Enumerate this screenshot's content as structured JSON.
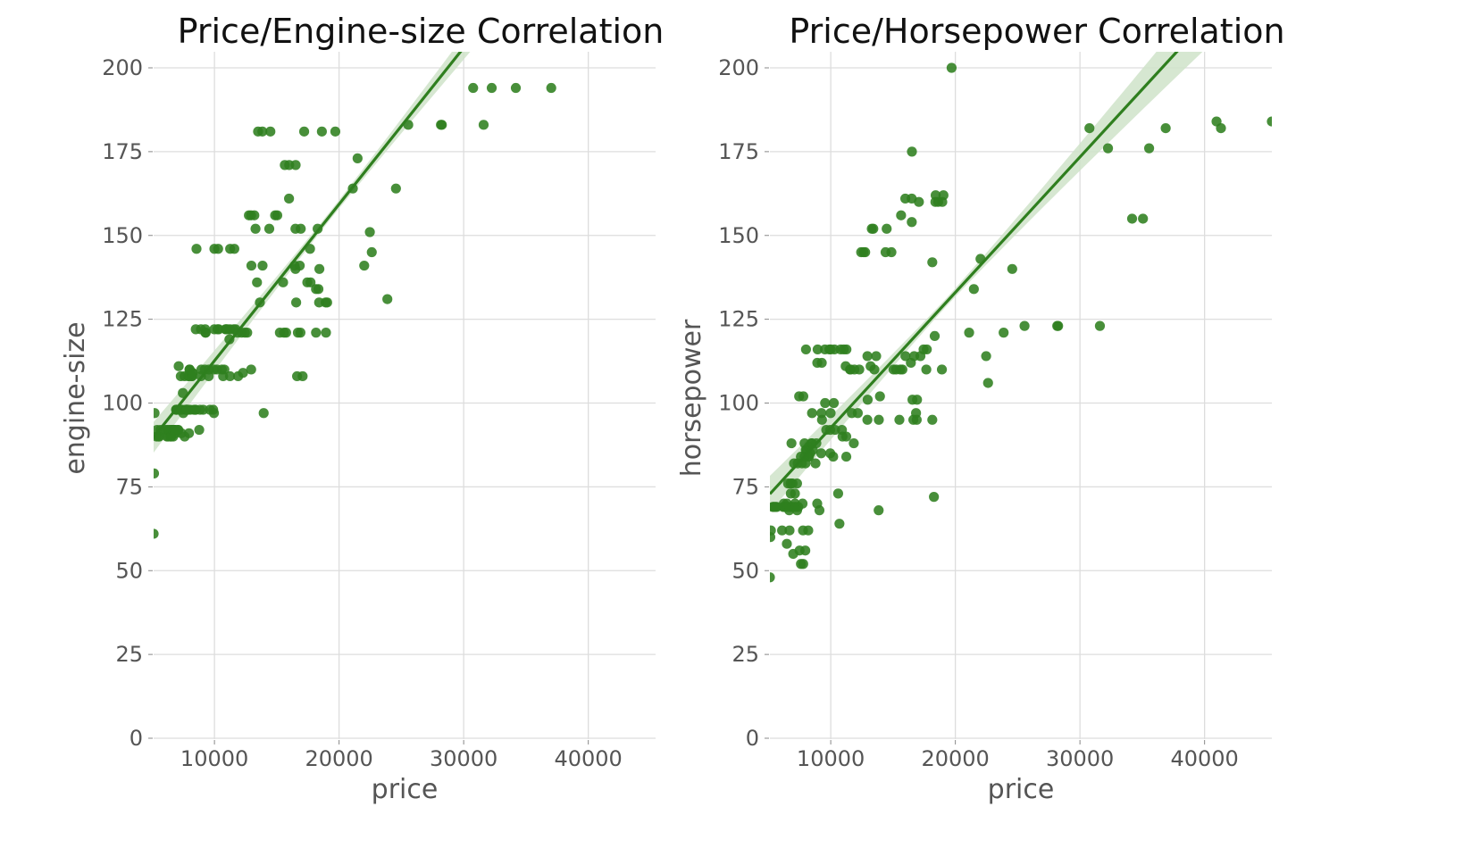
{
  "colors": {
    "point": "#2f7f1f",
    "line": "#2f7f1f",
    "band": "#cfe3c9",
    "grid": "#dddddd"
  },
  "chart_data": [
    {
      "type": "scatter",
      "title": "Price/Engine-size Correlation",
      "xlabel": "price",
      "ylabel": "engine-size",
      "xlim": [
        5118,
        45400
      ],
      "ylim": [
        0,
        200
      ],
      "grid": true,
      "xticks": [
        10000,
        20000,
        30000,
        40000
      ],
      "xtick_labels": [
        "10000",
        "20000",
        "30000",
        "40000"
      ],
      "yticks": [
        0,
        25,
        50,
        75,
        100,
        125,
        150,
        175,
        200
      ],
      "ytick_labels": [
        "0",
        "25",
        "50",
        "75",
        "100",
        "125",
        "150",
        "175",
        "200"
      ],
      "regression": {
        "slope": 0.00467,
        "intercept": 65.9,
        "ci_halfwidth_at_edge": 8
      },
      "points": [
        [
          5118,
          61
        ],
        [
          5151,
          79
        ],
        [
          5195,
          97
        ],
        [
          5348,
          90
        ],
        [
          5389,
          92
        ],
        [
          5499,
          90
        ],
        [
          5572,
          90
        ],
        [
          5669,
          92
        ],
        [
          6095,
          92
        ],
        [
          6189,
          90
        ],
        [
          6229,
          92
        ],
        [
          6295,
          90
        ],
        [
          6377,
          92
        ],
        [
          6479,
          90
        ],
        [
          6488,
          92
        ],
        [
          6529,
          90
        ],
        [
          6575,
          92
        ],
        [
          6649,
          92
        ],
        [
          6669,
          92
        ],
        [
          6692,
          90
        ],
        [
          6785,
          92
        ],
        [
          6795,
          92
        ],
        [
          6849,
          92
        ],
        [
          6855,
          91
        ],
        [
          6918,
          98
        ],
        [
          6938,
          98
        ],
        [
          6989,
          98
        ],
        [
          7053,
          92
        ],
        [
          7099,
          92
        ],
        [
          7126,
          98
        ],
        [
          7129,
          111
        ],
        [
          7198,
          98
        ],
        [
          7295,
          98
        ],
        [
          7299,
          108
        ],
        [
          7349,
          91
        ],
        [
          7395,
          98
        ],
        [
          7463,
          103
        ],
        [
          7499,
          97
        ],
        [
          7603,
          108
        ],
        [
          7609,
          90
        ],
        [
          7689,
          98
        ],
        [
          7738,
          98
        ],
        [
          7775,
          98
        ],
        [
          7788,
          98
        ],
        [
          7799,
          98
        ],
        [
          7895,
          98
        ],
        [
          7898,
          108
        ],
        [
          7957,
          91
        ],
        [
          7975,
          108
        ],
        [
          7995,
          110
        ],
        [
          8013,
          110
        ],
        [
          8058,
          98
        ],
        [
          8189,
          108
        ],
        [
          8195,
          108
        ],
        [
          8238,
          109
        ],
        [
          8249,
          109
        ],
        [
          8358,
          98
        ],
        [
          8449,
          98
        ],
        [
          8495,
          98
        ],
        [
          8499,
          122
        ],
        [
          8558,
          146
        ],
        [
          8778,
          92
        ],
        [
          8845,
          98
        ],
        [
          8916,
          122
        ],
        [
          8921,
          108
        ],
        [
          8948,
          110
        ],
        [
          9095,
          98
        ],
        [
          9233,
          110
        ],
        [
          9258,
          122
        ],
        [
          9279,
          121
        ],
        [
          9298,
          121
        ],
        [
          9538,
          108
        ],
        [
          9549,
          110
        ],
        [
          9639,
          98
        ],
        [
          9895,
          98
        ],
        [
          9959,
          97
        ],
        [
          9960,
          110
        ],
        [
          9989,
          122
        ],
        [
          9995,
          146
        ],
        [
          10198,
          110
        ],
        [
          10245,
          122
        ],
        [
          10295,
          146
        ],
        [
          10345,
          122
        ],
        [
          10595,
          110
        ],
        [
          10698,
          108
        ],
        [
          10795,
          110
        ],
        [
          10898,
          122
        ],
        [
          10945,
          122
        ],
        [
          11048,
          122
        ],
        [
          11199,
          119
        ],
        [
          11245,
          122
        ],
        [
          11248,
          108
        ],
        [
          11259,
          146
        ],
        [
          11549,
          122
        ],
        [
          11595,
          146
        ],
        [
          11694,
          122
        ],
        [
          11850,
          121
        ],
        [
          11900,
          108
        ],
        [
          12170,
          121
        ],
        [
          12290,
          109
        ],
        [
          12440,
          121
        ],
        [
          12629,
          121
        ],
        [
          12764,
          156
        ],
        [
          12940,
          156
        ],
        [
          12945,
          110
        ],
        [
          12964,
          141
        ],
        [
          13200,
          156
        ],
        [
          13295,
          152
        ],
        [
          13415,
          136
        ],
        [
          13499,
          181
        ],
        [
          13645,
          130
        ],
        [
          13845,
          181
        ],
        [
          13860,
          141
        ],
        [
          13950,
          97
        ],
        [
          14399,
          152
        ],
        [
          14489,
          181
        ],
        [
          14869,
          156
        ],
        [
          15040,
          156
        ],
        [
          15250,
          121
        ],
        [
          15510,
          136
        ],
        [
          15580,
          121
        ],
        [
          15645,
          171
        ],
        [
          15750,
          121
        ],
        [
          15985,
          161
        ],
        [
          15998,
          171
        ],
        [
          16430,
          141
        ],
        [
          16500,
          152
        ],
        [
          16503,
          140
        ],
        [
          16515,
          171
        ],
        [
          16558,
          130
        ],
        [
          16630,
          108
        ],
        [
          16695,
          121
        ],
        [
          16845,
          141
        ],
        [
          16900,
          121
        ],
        [
          16925,
          152
        ],
        [
          17075,
          108
        ],
        [
          17199,
          181
        ],
        [
          17450,
          136
        ],
        [
          17669,
          146
        ],
        [
          17710,
          136
        ],
        [
          18150,
          121
        ],
        [
          18150,
          134
        ],
        [
          18280,
          152
        ],
        [
          18344,
          134
        ],
        [
          18399,
          130
        ],
        [
          18420,
          140
        ],
        [
          18620,
          181
        ],
        [
          18920,
          130
        ],
        [
          18950,
          121
        ],
        [
          19045,
          130
        ],
        [
          19699,
          181
        ],
        [
          21105,
          164
        ],
        [
          22018,
          141
        ],
        [
          21485,
          173
        ],
        [
          22470,
          151
        ],
        [
          22625,
          145
        ],
        [
          24565,
          164
        ],
        [
          23875,
          131
        ],
        [
          25552,
          183
        ],
        [
          28176,
          183
        ],
        [
          28248,
          183
        ],
        [
          30760,
          194
        ],
        [
          31600,
          183
        ],
        [
          32250,
          194
        ],
        [
          34184,
          194
        ],
        [
          37028,
          194
        ]
      ]
    },
    {
      "type": "scatter",
      "title": "Price/Horsepower Correlation",
      "xlabel": "price",
      "ylabel": "horsepower",
      "xlim": [
        5118,
        45400
      ],
      "ylim": [
        0,
        200
      ],
      "grid": true,
      "xticks": [
        10000,
        20000,
        30000,
        40000
      ],
      "xtick_labels": [
        "10000",
        "20000",
        "30000",
        "40000"
      ],
      "yticks": [
        0,
        25,
        50,
        75,
        100,
        125,
        150,
        175,
        200
      ],
      "ytick_labels": [
        "0",
        "25",
        "50",
        "75",
        "100",
        "125",
        "150",
        "175",
        "200"
      ],
      "regression": {
        "slope": 0.00404,
        "intercept": 52.2,
        "ci_halfwidth_at_edge": 10
      },
      "points": [
        [
          5118,
          48
        ],
        [
          5151,
          60
        ],
        [
          5195,
          62
        ],
        [
          5348,
          69
        ],
        [
          5389,
          69
        ],
        [
          5499,
          69
        ],
        [
          5572,
          69
        ],
        [
          5669,
          69
        ],
        [
          6095,
          62
        ],
        [
          6189,
          69
        ],
        [
          6229,
          70
        ],
        [
          6295,
          69
        ],
        [
          6377,
          69
        ],
        [
          6479,
          58
        ],
        [
          6488,
          70
        ],
        [
          6529,
          69
        ],
        [
          6575,
          76
        ],
        [
          6649,
          69
        ],
        [
          6669,
          68
        ],
        [
          6692,
          62
        ],
        [
          6785,
          76
        ],
        [
          6795,
          73
        ],
        [
          6849,
          88
        ],
        [
          6855,
          69
        ],
        [
          6918,
          69
        ],
        [
          6938,
          76
        ],
        [
          6989,
          55
        ],
        [
          7053,
          82
        ],
        [
          7099,
          69
        ],
        [
          7126,
          73
        ],
        [
          7129,
          70
        ],
        [
          7198,
          69
        ],
        [
          7295,
          76
        ],
        [
          7299,
          68
        ],
        [
          7349,
          82
        ],
        [
          7395,
          69
        ],
        [
          7463,
          102
        ],
        [
          7499,
          56
        ],
        [
          7603,
          84
        ],
        [
          7609,
          52
        ],
        [
          7689,
          82
        ],
        [
          7738,
          70
        ],
        [
          7775,
          62
        ],
        [
          7788,
          52
        ],
        [
          7799,
          102
        ],
        [
          7895,
          88
        ],
        [
          7898,
          84
        ],
        [
          7957,
          56
        ],
        [
          7975,
          82
        ],
        [
          7995,
          86
        ],
        [
          8013,
          116
        ],
        [
          8058,
          86
        ],
        [
          8189,
          84
        ],
        [
          8195,
          62
        ],
        [
          8238,
          87
        ],
        [
          8249,
          84
        ],
        [
          8358,
          85
        ],
        [
          8449,
          88
        ],
        [
          8495,
          88
        ],
        [
          8499,
          97
        ],
        [
          8558,
          86
        ],
        [
          8778,
          82
        ],
        [
          8845,
          88
        ],
        [
          8916,
          70
        ],
        [
          8921,
          112
        ],
        [
          8948,
          116
        ],
        [
          9095,
          68
        ],
        [
          9233,
          85
        ],
        [
          9258,
          97
        ],
        [
          9279,
          112
        ],
        [
          9298,
          95
        ],
        [
          9538,
          116
        ],
        [
          9549,
          100
        ],
        [
          9639,
          92
        ],
        [
          9895,
          116
        ],
        [
          9959,
          92
        ],
        [
          9960,
          85
        ],
        [
          9989,
          97
        ],
        [
          9995,
          116
        ],
        [
          10198,
          84
        ],
        [
          10245,
          100
        ],
        [
          10295,
          116
        ],
        [
          10345,
          92
        ],
        [
          10595,
          73
        ],
        [
          10698,
          64
        ],
        [
          10795,
          116
        ],
        [
          10898,
          92
        ],
        [
          10945,
          90
        ],
        [
          11048,
          116
        ],
        [
          11199,
          111
        ],
        [
          11245,
          90
        ],
        [
          11248,
          84
        ],
        [
          11259,
          116
        ],
        [
          11549,
          110
        ],
        [
          11595,
          110
        ],
        [
          11694,
          97
        ],
        [
          11850,
          88
        ],
        [
          11900,
          110
        ],
        [
          12170,
          97
        ],
        [
          12290,
          110
        ],
        [
          12440,
          145
        ],
        [
          12629,
          145
        ],
        [
          12764,
          145
        ],
        [
          12940,
          95
        ],
        [
          12945,
          114
        ],
        [
          12964,
          101
        ],
        [
          13200,
          111
        ],
        [
          13295,
          152
        ],
        [
          13415,
          152
        ],
        [
          13499,
          110
        ],
        [
          13645,
          114
        ],
        [
          13845,
          68
        ],
        [
          13860,
          95
        ],
        [
          13950,
          102
        ],
        [
          14399,
          145
        ],
        [
          14489,
          152
        ],
        [
          14869,
          145
        ],
        [
          15040,
          110
        ],
        [
          15250,
          110
        ],
        [
          15510,
          95
        ],
        [
          15580,
          110
        ],
        [
          15645,
          156
        ],
        [
          15750,
          110
        ],
        [
          15985,
          161
        ],
        [
          15998,
          114
        ],
        [
          16430,
          112
        ],
        [
          16500,
          161
        ],
        [
          16503,
          154
        ],
        [
          16515,
          175
        ],
        [
          16558,
          101
        ],
        [
          16630,
          95
        ],
        [
          16695,
          114
        ],
        [
          16845,
          97
        ],
        [
          16900,
          95
        ],
        [
          16925,
          101
        ],
        [
          17075,
          160
        ],
        [
          17199,
          114
        ],
        [
          17450,
          116
        ],
        [
          17669,
          110
        ],
        [
          17710,
          116
        ],
        [
          18150,
          142
        ],
        [
          18150,
          95
        ],
        [
          18280,
          72
        ],
        [
          18344,
          120
        ],
        [
          18399,
          160
        ],
        [
          18420,
          162
        ],
        [
          18620,
          160
        ],
        [
          18920,
          110
        ],
        [
          18950,
          160
        ],
        [
          19045,
          162
        ],
        [
          19699,
          200
        ],
        [
          21105,
          121
        ],
        [
          22018,
          143
        ],
        [
          21485,
          134
        ],
        [
          22470,
          114
        ],
        [
          22625,
          106
        ],
        [
          24565,
          140
        ],
        [
          23875,
          121
        ],
        [
          25552,
          123
        ],
        [
          28176,
          123
        ],
        [
          28248,
          123
        ],
        [
          30760,
          182
        ],
        [
          31600,
          123
        ],
        [
          32250,
          176
        ],
        [
          34184,
          155
        ],
        [
          35056,
          155
        ],
        [
          35550,
          176
        ],
        [
          36880,
          182
        ],
        [
          40960,
          184
        ],
        [
          41315,
          182
        ],
        [
          45400,
          184
        ]
      ]
    }
  ]
}
